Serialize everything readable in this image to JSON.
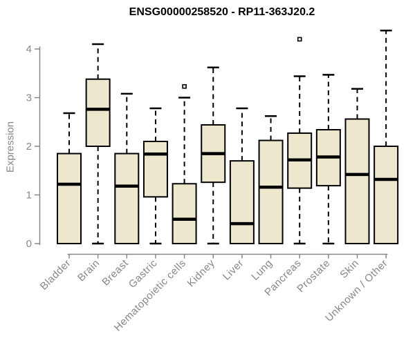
{
  "chart_data": {
    "type": "boxplot",
    "title": "ENSG00000258520 - RP11-363J20.2",
    "ylabel": "Expression",
    "xlabel": "",
    "ylim": [
      0,
      4.4
    ],
    "yticks": [
      0,
      1,
      2,
      3,
      4
    ],
    "grid": false,
    "legend": false,
    "categories": [
      "Bladder",
      "Brain",
      "Breast",
      "Gastric",
      "Hematopoietic cells",
      "Kidney",
      "Liver",
      "Lung",
      "Pancreas",
      "Prostate",
      "Skin",
      "Unknown / Other"
    ],
    "series": [
      {
        "category": "Bladder",
        "min": 0,
        "q1": 0,
        "median": 1.22,
        "q3": 1.85,
        "max": 2.68,
        "outliers": []
      },
      {
        "category": "Brain",
        "min": 0,
        "q1": 2.0,
        "median": 2.76,
        "q3": 3.38,
        "max": 4.1,
        "outliers": []
      },
      {
        "category": "Breast",
        "min": 0,
        "q1": 0,
        "median": 1.18,
        "q3": 1.85,
        "max": 3.08,
        "outliers": []
      },
      {
        "category": "Gastric",
        "min": 0,
        "q1": 0.96,
        "median": 1.84,
        "q3": 2.1,
        "max": 2.78,
        "outliers": []
      },
      {
        "category": "Hematopoietic cells",
        "min": 0,
        "q1": 0,
        "median": 0.5,
        "q3": 1.23,
        "max": 3.0,
        "outliers": [
          3.23
        ]
      },
      {
        "category": "Kidney",
        "min": 0,
        "q1": 1.26,
        "median": 1.85,
        "q3": 2.44,
        "max": 3.62,
        "outliers": []
      },
      {
        "category": "Liver",
        "min": 0,
        "q1": 0,
        "median": 0.41,
        "q3": 1.7,
        "max": 2.78,
        "outliers": []
      },
      {
        "category": "Lung",
        "min": 0,
        "q1": 0,
        "median": 1.16,
        "q3": 2.12,
        "max": 2.62,
        "outliers": []
      },
      {
        "category": "Pancreas",
        "min": 0,
        "q1": 1.14,
        "median": 1.72,
        "q3": 2.27,
        "max": 3.44,
        "outliers": [
          4.2
        ]
      },
      {
        "category": "Prostate",
        "min": 0,
        "q1": 1.19,
        "median": 1.78,
        "q3": 2.34,
        "max": 3.47,
        "outliers": []
      },
      {
        "category": "Skin",
        "min": 0,
        "q1": 0,
        "median": 1.42,
        "q3": 2.56,
        "max": 3.18,
        "outliers": []
      },
      {
        "category": "Unknown / Other",
        "min": 0,
        "q1": 0,
        "median": 1.32,
        "q3": 2.0,
        "max": 4.38,
        "outliers": []
      }
    ]
  },
  "colors": {
    "background": "#FFFFFF",
    "box_fill": "#EDE7CD",
    "box_stroke": "#000000",
    "median": "#000000",
    "whisker": "#000000",
    "axis": "#878787",
    "tick_label": "#878787",
    "title": "#000000"
  }
}
